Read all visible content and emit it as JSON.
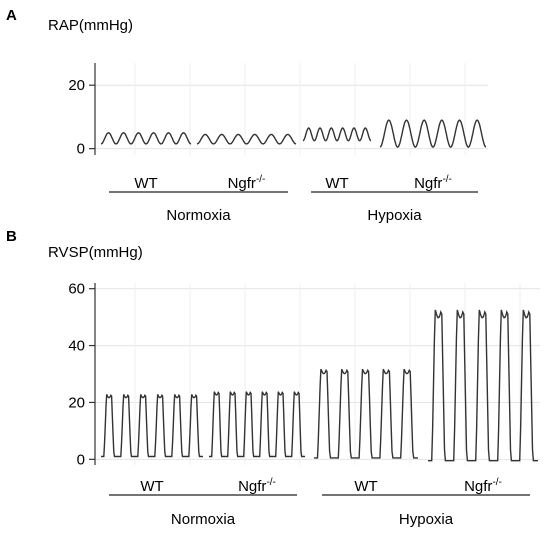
{
  "chart_data": [
    {
      "type": "line",
      "panel": "A",
      "ylabel": "RAP(mmHg)",
      "ylim": [
        -2,
        27
      ],
      "yticks": [
        0,
        20
      ],
      "grid": true,
      "groups": [
        {
          "condition": "Normoxia",
          "genotype": "WT",
          "genotype_sup": "",
          "trace": {
            "min": 1.5,
            "max": 5.0,
            "cycles": 6
          }
        },
        {
          "condition": "Normoxia",
          "genotype": "Ngfr",
          "genotype_sup": "-/-",
          "trace": {
            "min": 1.5,
            "max": 4.5,
            "cycles": 6
          }
        },
        {
          "condition": "Hypoxia",
          "genotype": "WT",
          "genotype_sup": "",
          "trace": {
            "min": 2.5,
            "max": 6.5,
            "cycles": 6
          }
        },
        {
          "condition": "Hypoxia",
          "genotype": "Ngfr",
          "genotype_sup": "-/-",
          "trace": {
            "min": 0.5,
            "max": 9.0,
            "cycles": 6
          }
        }
      ],
      "conditions": [
        "Normoxia",
        "Hypoxia"
      ]
    },
    {
      "type": "line",
      "panel": "B",
      "ylabel": "RVSP(mmHg)",
      "ylim": [
        -2,
        62
      ],
      "yticks": [
        0,
        20,
        40,
        60
      ],
      "grid": true,
      "groups": [
        {
          "condition": "Normoxia",
          "genotype": "WT",
          "genotype_sup": "",
          "trace": {
            "min": 1.0,
            "max": 23.0,
            "cycles": 6
          }
        },
        {
          "condition": "Normoxia",
          "genotype": "Ngfr",
          "genotype_sup": "-/-",
          "trace": {
            "min": 1.0,
            "max": 24.0,
            "cycles": 6
          }
        },
        {
          "condition": "Hypoxia",
          "genotype": "WT",
          "genotype_sup": "",
          "trace": {
            "min": 0.5,
            "max": 32.0,
            "cycles": 5
          }
        },
        {
          "condition": "Hypoxia",
          "genotype": "Ngfr",
          "genotype_sup": "-/-",
          "trace": {
            "min": -0.5,
            "max": 53.0,
            "cycles": 5
          }
        }
      ],
      "conditions": [
        "Normoxia",
        "Hypoxia"
      ]
    }
  ]
}
